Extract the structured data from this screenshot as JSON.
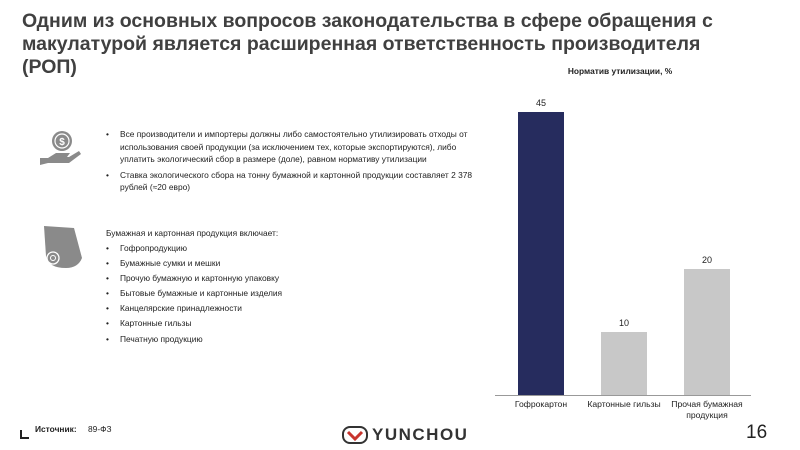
{
  "title": "Одним из основных вопросов законодательства в сфере обращения с макулатурой является расширенная ответственность производителя (РОП)",
  "obligations": [
    "Все производители и импортеры должны либо самостоятельно утилизировать отходы от использования своей продукции (за исключением тех, которые экспортируются), либо уплатить экологический сбор в размере (доле), равном нормативу утилизации",
    "Ставка экологического сбора на тонну бумажной и картонной продукции составляет 2 378 рублей (≈20 евро)"
  ],
  "products": {
    "intro": "Бумажная и картонная продукция включает:",
    "items": [
      "Гофропродукцию",
      "Бумажные сумки и мешки",
      "Прочую бумажную и картонную упаковку",
      "Бытовые бумажные и картонные изделия",
      "Канцелярские принадлежности",
      "Картонные гильзы",
      "Печатную продукцию"
    ]
  },
  "chart_data": {
    "type": "bar",
    "title": "Норматив утилизации, %",
    "categories": [
      "Гофрокартон",
      "Картонные гильзы",
      "Прочая бумажная продукция"
    ],
    "values": [
      45,
      10,
      20
    ],
    "colors": [
      "#262c5e",
      "#c8c8c8",
      "#c8c8c8"
    ]
  },
  "footer": {
    "source_label": "Источник:",
    "source": "89-ФЗ",
    "logo": "YUNCHOU",
    "page": "16"
  }
}
